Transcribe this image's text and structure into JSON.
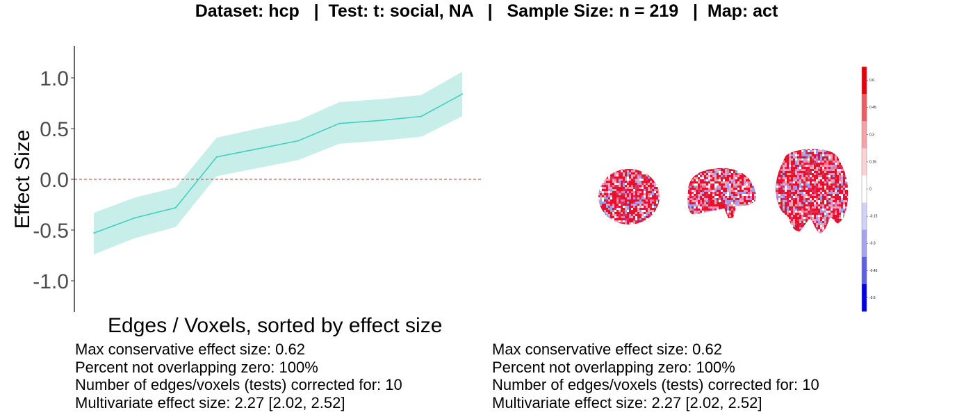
{
  "title": "Dataset: hcp   |  Test: t: social, NA   |   Sample Size: n = 219   |  Map: act",
  "chart_data": {
    "type": "line",
    "title": "Dataset: hcp   |  Test: t: social, NA   |   Sample Size: n = 219   |  Map: act",
    "xlabel": "Edges / Voxels, sorted by effect size",
    "ylabel": "Effect Size",
    "x": [
      1,
      2,
      3,
      4,
      5,
      6,
      7,
      8,
      9,
      10
    ],
    "series": [
      {
        "values": [
          -0.53,
          -0.38,
          -0.28,
          0.22,
          0.3,
          0.38,
          0.55,
          0.58,
          0.62,
          0.84
        ],
        "lower": [
          -0.74,
          -0.58,
          -0.47,
          0.03,
          0.11,
          0.19,
          0.35,
          0.38,
          0.42,
          0.62
        ],
        "upper": [
          -0.33,
          -0.18,
          -0.08,
          0.41,
          0.5,
          0.58,
          0.76,
          0.79,
          0.83,
          1.06
        ],
        "color": "#40d0c0"
      }
    ],
    "yticks": [
      "1.0",
      "0.5",
      "0.0",
      "-0.5",
      "-1.0"
    ],
    "ytick_values": [
      1.0,
      0.5,
      0.0,
      -0.5,
      -1.0
    ],
    "ylim": [
      -1.3,
      1.3
    ],
    "reference_line": {
      "y": 0,
      "color": "#cc3333",
      "style": "dashed"
    },
    "grid": false,
    "band_color": "#c8eeea",
    "colorbar": {
      "ticks": [
        "0.6",
        "0.45",
        "0.3",
        "0.15",
        "0",
        "-0.15",
        "-0.3",
        "-0.45",
        "-0.6"
      ],
      "colors": [
        "#e8000b",
        "#f05c64",
        "#f6a3a7",
        "#fbd2d4",
        "#ffffff",
        "#d2d2f8",
        "#a3a3f0",
        "#5f5fe6",
        "#0000e8"
      ]
    }
  },
  "stats_left": [
    "Max conservative effect size: 0.62",
    "Percent not overlapping zero: 100%",
    "Number of edges/voxels (tests) corrected for: 10",
    "Multivariate effect size: 2.27 [2.02, 2.52]"
  ],
  "stats_right": [
    "Max conservative effect size: 0.62",
    "Percent not overlapping zero: 100%",
    "Number of edges/voxels (tests) corrected for: 10",
    "Multivariate effect size: 2.27 [2.02, 2.52]"
  ],
  "brain_colors": [
    "#e8102a",
    "#f4a2b8",
    "#9e9ef0",
    "#ffffff",
    "#d83060",
    "#f07090"
  ]
}
